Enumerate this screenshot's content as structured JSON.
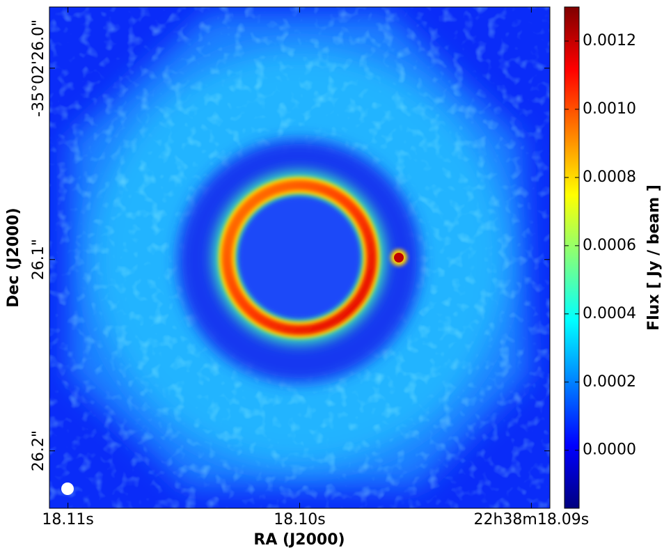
{
  "chart_data": {
    "type": "image",
    "xlabel": "RA (J2000)",
    "ylabel": "Dec (J2000)",
    "colorbar_label": "Flux [ Jy / beam ]",
    "colormap": "jet",
    "xlim": [
      18.1108,
      18.0892
    ],
    "xticks": [
      {
        "value": 18.11,
        "label": "18.11s"
      },
      {
        "value": 18.1,
        "label": "18.10s"
      },
      {
        "value": 18.09,
        "label": "22h38m18.09s"
      }
    ],
    "ylim": [
      26.23,
      25.968
    ],
    "yticks": [
      {
        "value": 26.0,
        "label": "-35°02'26.0\""
      },
      {
        "value": 26.1,
        "label": "26.1\""
      },
      {
        "value": 26.2,
        "label": "26.2\""
      }
    ],
    "clim": [
      -0.00017,
      0.0013
    ],
    "cticks": [
      {
        "value": 0,
        "label": "0.0000"
      },
      {
        "value": 0.0002,
        "label": "0.0002"
      },
      {
        "value": 0.0004,
        "label": "0.0004"
      },
      {
        "value": 0.0006,
        "label": "0.0006"
      },
      {
        "value": 0.0008,
        "label": "0.0008"
      },
      {
        "value": 0.001,
        "label": "0.0010"
      },
      {
        "value": 0.0012,
        "label": "0.0012"
      }
    ]
  }
}
